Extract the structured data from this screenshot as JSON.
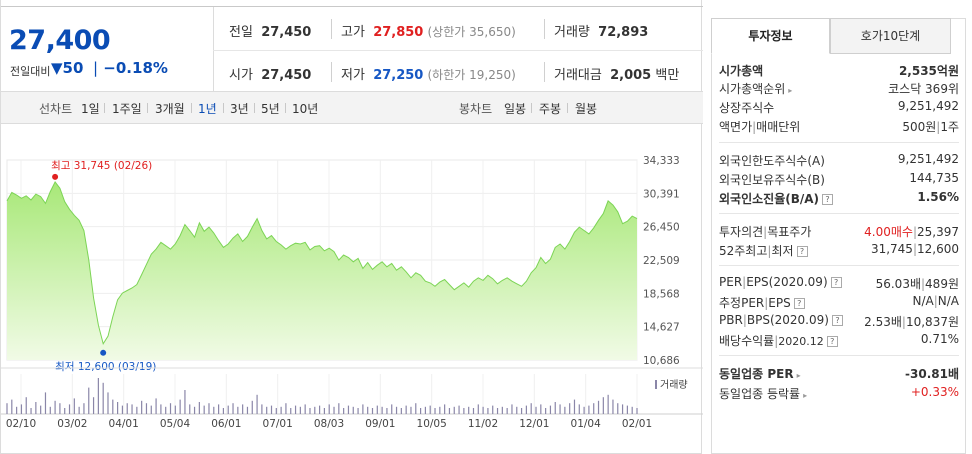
{
  "quote": {
    "price": "27,400",
    "change_label": "전일대비",
    "change_arrow": "▼",
    "change_amount": "50",
    "change_pct": "−0.18%",
    "prev_label": "전일",
    "prev_value": "27,450",
    "high_label": "고가",
    "high_value": "27,850",
    "upper_limit": "(상한가 35,650)",
    "volume_label": "거래량",
    "volume_value": "72,893",
    "open_label": "시가",
    "open_value": "27,450",
    "low_label": "저가",
    "low_value": "27,250",
    "lower_limit": "(하한가 19,250)",
    "amount_label": "거래대금",
    "amount_value": "2,005",
    "amount_unit": "백만"
  },
  "periods": {
    "line_label": "선차트",
    "line_items": [
      "1일",
      "1주일",
      "3개월",
      "1년",
      "3년",
      "5년",
      "10년"
    ],
    "selected": "1년",
    "candle_label": "봉차트",
    "candle_items": [
      "일봉",
      "주봉",
      "월봉"
    ]
  },
  "tabs": {
    "invest_info": "투자정보",
    "orderbook": "호가10단계"
  },
  "invest": {
    "market_cap_label": "시가총액",
    "market_cap_value": "2,535억원",
    "rank_label": "시가총액순위",
    "rank_value": "코스닥 369위",
    "shares_label": "상장주식수",
    "shares_value": "9,251,492",
    "par_label": "액면가",
    "unit_label": "매매단위",
    "par_value": "500원",
    "unit_value": "1주",
    "foreign_limit_label": "외국인한도주식수(A)",
    "foreign_limit_value": "9,251,492",
    "foreign_hold_label": "외국인보유주식수(B)",
    "foreign_hold_value": "144,735",
    "foreign_ratio_label": "외국인소진율(B/A)",
    "foreign_ratio_value": "1.56%",
    "opinion_label": "투자의견",
    "target_label": "목표주가",
    "opinion_value": "4.00매수",
    "target_value": "25,397",
    "w52_label": "52주최고",
    "w52_low_label": "최저",
    "w52_high_value": "31,745",
    "w52_low_value": "12,600",
    "per_label": "PER",
    "eps_label": "EPS(2020.09)",
    "per_value": "56.03배",
    "eps_value": "489원",
    "est_per_label": "추정PER",
    "est_eps_label": "EPS",
    "est_per_value": "N/A",
    "est_eps_value": "N/A",
    "pbr_label": "PBR",
    "bps_label": "BPS(2020.09)",
    "pbr_value": "2.53배",
    "bps_value": "10,837원",
    "div_label": "배당수익률",
    "div_date": "2020.12",
    "div_value": "0.71%",
    "sector_per_label": "동일업종 PER",
    "sector_per_value": "-30.81배",
    "sector_rate_label": "동일업종 등락률",
    "sector_rate_value": "+0.33%"
  },
  "colors": {
    "up": "#e02020",
    "down": "#1657c4",
    "area": "#bff09a",
    "line": "#7cd455"
  },
  "chart_data": {
    "type": "area",
    "y_ticks": [
      "34,333",
      "30,391",
      "26,450",
      "22,509",
      "18,568",
      "14,627",
      "10,686"
    ],
    "ylim": [
      10686,
      34333
    ],
    "x_ticks": [
      "02/10",
      "03/02",
      "04/01",
      "05/04",
      "06/01",
      "07/01",
      "08/03",
      "09/01",
      "10/05",
      "11/02",
      "12/01",
      "01/04",
      "02/01"
    ],
    "high_annotation": "최고 31,745 (02/26)",
    "low_annotation": "최저 12,600 (03/19)",
    "volume_label": "거래량",
    "values": [
      29500,
      30500,
      30200,
      29800,
      30100,
      29600,
      30300,
      30000,
      29200,
      30600,
      31745,
      31000,
      29400,
      28500,
      27800,
      27200,
      26000,
      22500,
      18000,
      14800,
      12600,
      13500,
      15800,
      17800,
      18600,
      18900,
      19200,
      19600,
      20800,
      22000,
      23200,
      23800,
      24600,
      24200,
      23800,
      24400,
      25400,
      26700,
      26000,
      25200,
      26900,
      25900,
      26400,
      25700,
      24800,
      24000,
      24400,
      25100,
      25600,
      24700,
      25300,
      26400,
      27400,
      26000,
      25000,
      25400,
      24700,
      24300,
      23800,
      24200,
      24500,
      24400,
      24600,
      23700,
      24100,
      24200,
      23600,
      23900,
      23500,
      22500,
      23100,
      22800,
      22300,
      22700,
      21500,
      22200,
      21400,
      21900,
      22300,
      21700,
      22100,
      21300,
      21700,
      21100,
      20400,
      21000,
      20700,
      20000,
      19800,
      19400,
      19900,
      20200,
      19600,
      19000,
      19400,
      19800,
      19300,
      20000,
      20400,
      20100,
      20700,
      20300,
      19700,
      20100,
      20400,
      20000,
      19700,
      19400,
      20000,
      21000,
      21600,
      22800,
      22100,
      22600,
      24000,
      24400,
      23800,
      24700,
      25800,
      26400,
      26000,
      25600,
      26300,
      27200,
      28000,
      29500,
      29000,
      28200,
      26800,
      27100,
      27700,
      27400
    ],
    "volumes": [
      9,
      12,
      6,
      8,
      14,
      5,
      10,
      7,
      18,
      6,
      11,
      9,
      5,
      8,
      13,
      6,
      9,
      22,
      14,
      30,
      26,
      18,
      12,
      10,
      7,
      9,
      8,
      6,
      11,
      9,
      7,
      13,
      8,
      6,
      9,
      7,
      12,
      20,
      8,
      6,
      10,
      7,
      9,
      6,
      8,
      5,
      7,
      9,
      6,
      8,
      6,
      11,
      16,
      8,
      6,
      7,
      5,
      6,
      9,
      5,
      7,
      6,
      8,
      5,
      6,
      7,
      5,
      8,
      6,
      9,
      5,
      7,
      6,
      5,
      8,
      6,
      5,
      7,
      6,
      5,
      8,
      6,
      5,
      7,
      6,
      9,
      5,
      6,
      7,
      5,
      6,
      8,
      5,
      6,
      7,
      5,
      6,
      5,
      8,
      6,
      5,
      7,
      5,
      6,
      5,
      8,
      6,
      5,
      7,
      9,
      6,
      8,
      5,
      7,
      10,
      8,
      6,
      9,
      12,
      8,
      6,
      7,
      9,
      11,
      14,
      16,
      12,
      9,
      8,
      7,
      6,
      5
    ]
  }
}
